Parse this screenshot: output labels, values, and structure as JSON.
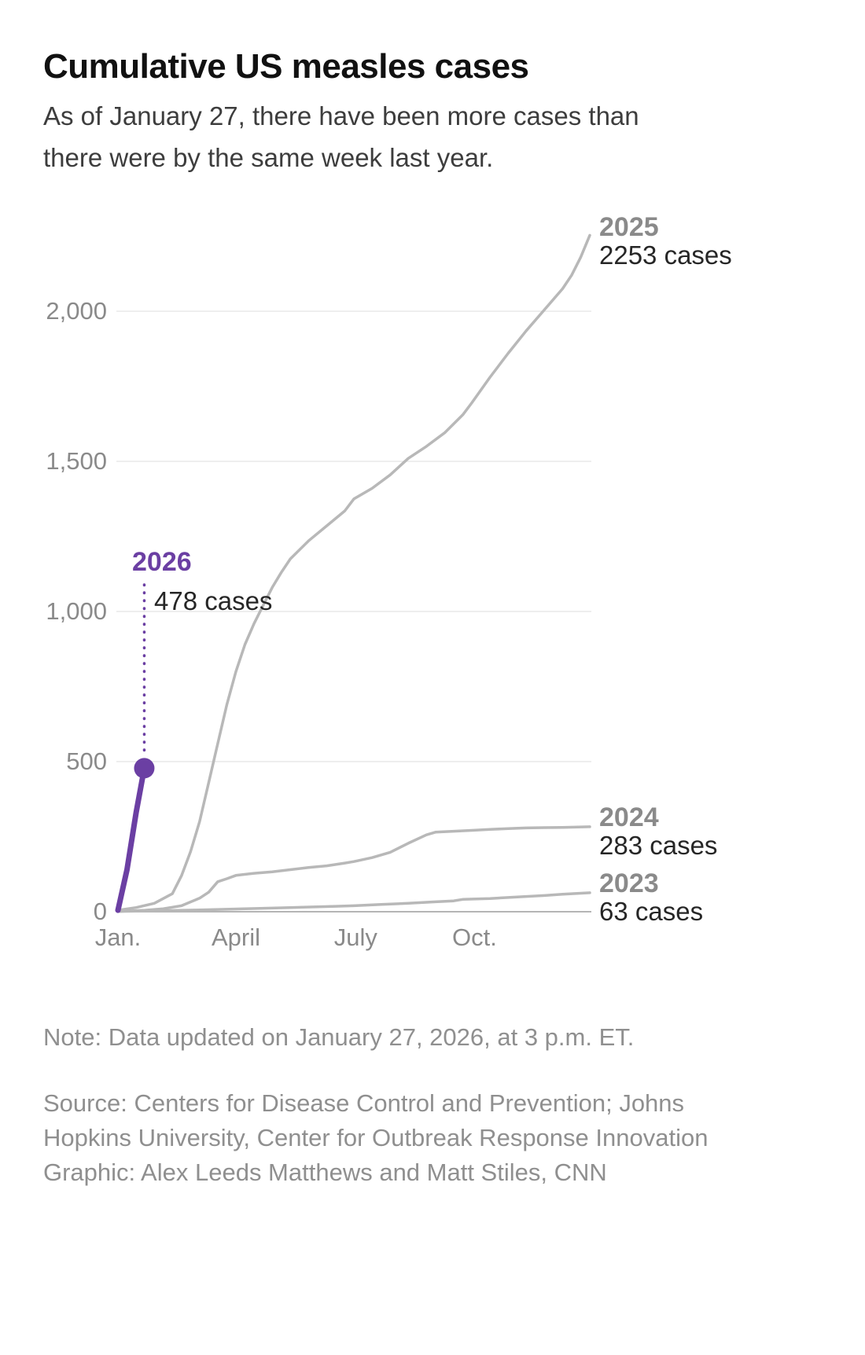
{
  "header": {
    "title": "Cumulative US measles cases",
    "subtitle": "As of January 27, there have been more cases than there were by the same week last year."
  },
  "chart_data": {
    "type": "line",
    "title": "Cumulative US measles cases",
    "x_axis": {
      "unit": "week of year",
      "range": [
        1,
        53
      ]
    },
    "y_axis": {
      "label": "cumulative cases",
      "range": [
        0,
        2300
      ]
    },
    "grid": "horizontal",
    "y_ticks": [
      {
        "value": 0,
        "label": "0"
      },
      {
        "value": 500,
        "label": "500"
      },
      {
        "value": 1000,
        "label": "1,000"
      },
      {
        "value": 1500,
        "label": "1,500"
      },
      {
        "value": 2000,
        "label": "2,000"
      }
    ],
    "x_ticks": [
      {
        "week": 1,
        "label": "Jan."
      },
      {
        "week": 14,
        "label": "April"
      },
      {
        "week": 27.2,
        "label": "July"
      },
      {
        "week": 40.3,
        "label": "Oct."
      }
    ],
    "style": {
      "grid_color": "#e8e8e8",
      "axis_color": "#b5b5b5",
      "tick_label_color": "#8a8a8a",
      "gray_line_color": "#b8b8b8",
      "accent_purple": "#6b3fa3",
      "value_label_color": "#262626"
    },
    "series": [
      {
        "name": "2025",
        "label_year": "2025",
        "label_value": "2253 cases",
        "final_value": 2253,
        "color": "#b8b8b8",
        "width": 3.5,
        "points": [
          [
            1,
            5
          ],
          [
            3,
            14
          ],
          [
            5,
            28
          ],
          [
            7,
            60
          ],
          [
            8,
            120
          ],
          [
            9,
            200
          ],
          [
            10,
            300
          ],
          [
            11,
            430
          ],
          [
            12,
            560
          ],
          [
            13,
            690
          ],
          [
            14,
            800
          ],
          [
            15,
            890
          ],
          [
            16,
            960
          ],
          [
            17,
            1020
          ],
          [
            18,
            1080
          ],
          [
            19,
            1130
          ],
          [
            20,
            1175
          ],
          [
            22,
            1235
          ],
          [
            24,
            1285
          ],
          [
            26,
            1335
          ],
          [
            27,
            1375
          ],
          [
            29,
            1410
          ],
          [
            31,
            1455
          ],
          [
            33,
            1510
          ],
          [
            35,
            1550
          ],
          [
            37,
            1595
          ],
          [
            39,
            1655
          ],
          [
            40,
            1695
          ],
          [
            42,
            1780
          ],
          [
            44,
            1860
          ],
          [
            46,
            1935
          ],
          [
            48,
            2005
          ],
          [
            50,
            2075
          ],
          [
            51,
            2120
          ],
          [
            52,
            2180
          ],
          [
            53,
            2253
          ]
        ]
      },
      {
        "name": "2024",
        "label_year": "2024",
        "label_value": "283 cases",
        "final_value": 283,
        "color": "#b8b8b8",
        "width": 3.5,
        "points": [
          [
            1,
            1
          ],
          [
            4,
            5
          ],
          [
            6,
            10
          ],
          [
            8,
            20
          ],
          [
            10,
            45
          ],
          [
            11,
            65
          ],
          [
            12,
            100
          ],
          [
            13,
            110
          ],
          [
            14,
            121
          ],
          [
            16,
            128
          ],
          [
            18,
            133
          ],
          [
            20,
            140
          ],
          [
            22,
            147
          ],
          [
            24,
            153
          ],
          [
            26,
            162
          ],
          [
            27,
            167
          ],
          [
            29,
            180
          ],
          [
            31,
            198
          ],
          [
            33,
            228
          ],
          [
            35,
            256
          ],
          [
            36,
            265
          ],
          [
            38,
            268
          ],
          [
            40,
            271
          ],
          [
            42,
            274
          ],
          [
            44,
            277
          ],
          [
            46,
            279
          ],
          [
            48,
            280
          ],
          [
            50,
            281
          ],
          [
            53,
            283
          ]
        ]
      },
      {
        "name": "2023",
        "label_year": "2023",
        "label_value": "63 cases",
        "final_value": 63,
        "color": "#b8b8b8",
        "width": 3.5,
        "points": [
          [
            1,
            1
          ],
          [
            5,
            3
          ],
          [
            10,
            6
          ],
          [
            15,
            10
          ],
          [
            20,
            14
          ],
          [
            25,
            18
          ],
          [
            27,
            20
          ],
          [
            30,
            24
          ],
          [
            33,
            28
          ],
          [
            36,
            33
          ],
          [
            38,
            36
          ],
          [
            39,
            41
          ],
          [
            42,
            44
          ],
          [
            45,
            49
          ],
          [
            48,
            54
          ],
          [
            50,
            58
          ],
          [
            53,
            63
          ]
        ]
      },
      {
        "name": "2026",
        "label_year": "2026",
        "label_value": "478 cases",
        "final_value": 478,
        "color": "#6b3fa3",
        "width": 7,
        "points": [
          [
            1,
            5
          ],
          [
            2,
            140
          ],
          [
            3,
            330
          ],
          [
            3.9,
            478
          ]
        ],
        "marker": [
          3.9,
          478
        ]
      }
    ]
  },
  "footer": {
    "note": "Note: Data updated on January 27, 2026, at 3 p.m. ET.",
    "source": "Source: Centers for Disease Control and Prevention; Johns Hopkins University, Center for Outbreak Response Innovation",
    "credit": "Graphic: Alex Leeds Matthews and Matt Stiles, CNN"
  }
}
